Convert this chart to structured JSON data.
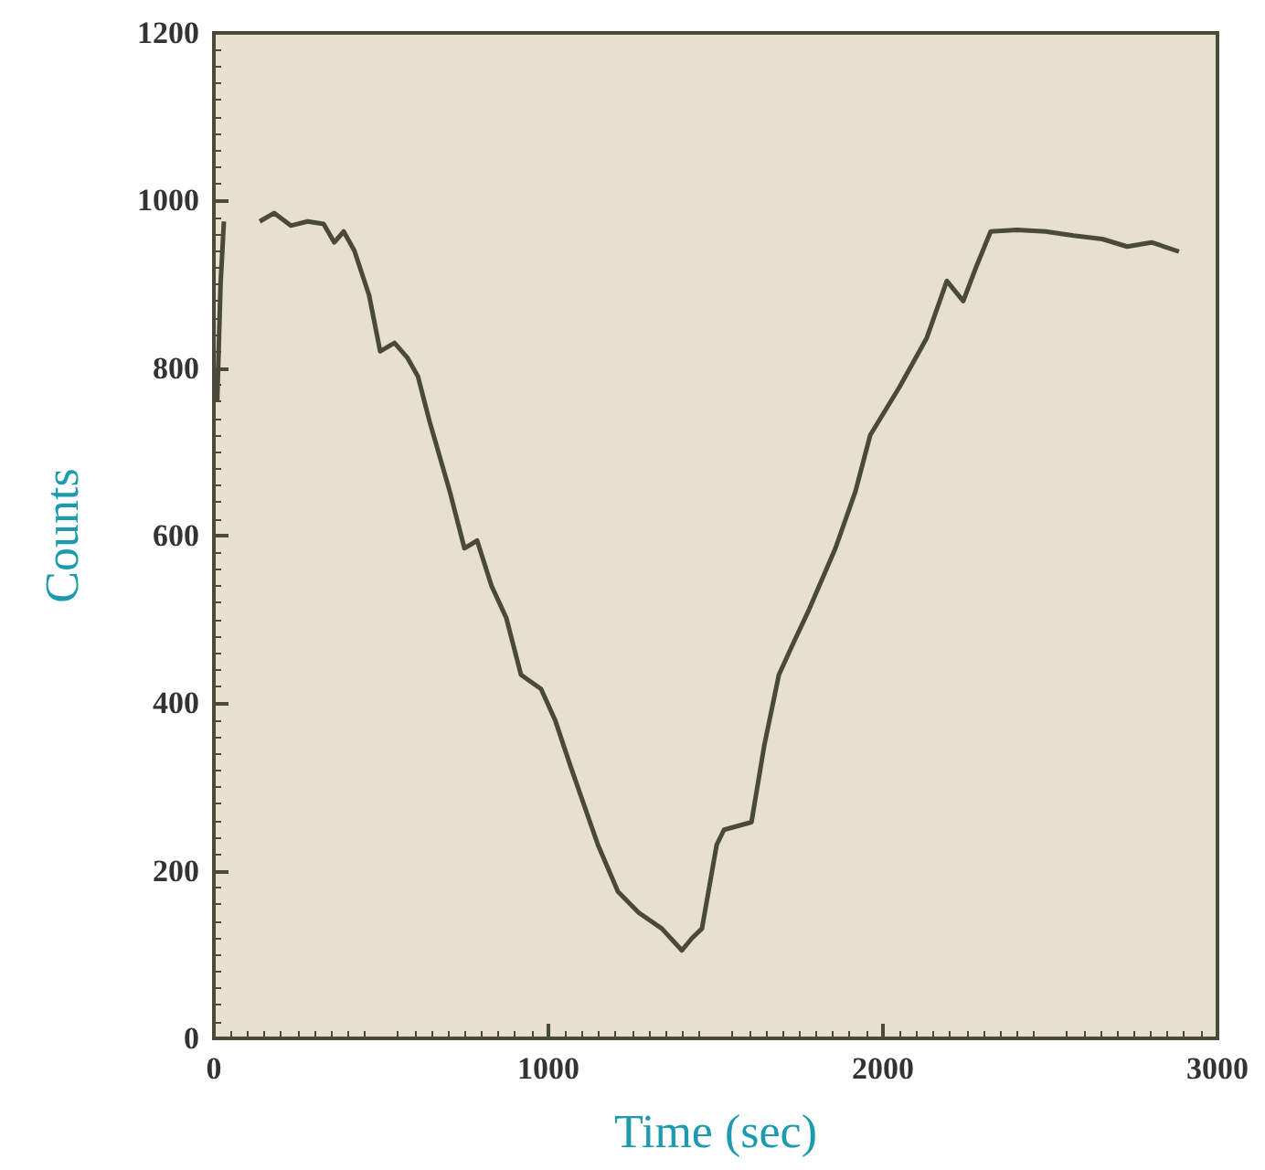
{
  "chart_data": {
    "type": "line",
    "xlabel": "Time (sec)",
    "ylabel": "Counts",
    "x": [
      10,
      20,
      30,
      60,
      137,
      180,
      230,
      280,
      328,
      360,
      388,
      420,
      464,
      497,
      540,
      579,
      610,
      645,
      705,
      749,
      787,
      830,
      874,
      918,
      978,
      1020,
      1066,
      1148,
      1208,
      1270,
      1339,
      1399,
      1430,
      1459,
      1503,
      1525,
      1607,
      1645,
      1689,
      1730,
      1776,
      1858,
      1918,
      1962,
      2049,
      2131,
      2191,
      2240,
      2279,
      2322,
      2400,
      2486,
      2570,
      2656,
      2730,
      2803,
      2885
    ],
    "series": [
      {
        "color": "#4a4a38",
        "values": [
          760,
          900,
          975,
          null,
          975,
          985,
          970,
          975,
          972,
          950,
          963,
          940,
          887,
          820,
          830,
          812,
          790,
          736,
          653,
          585,
          594,
          540,
          502,
          434,
          417,
          380,
          325,
          231,
          175,
          150,
          131,
          105,
          120,
          131,
          231,
          249,
          258,
          349,
          434,
          470,
          509,
          585,
          653,
          720,
          777,
          836,
          904,
          880,
          921,
          963,
          965,
          963,
          958,
          954,
          945,
          950,
          939
        ]
      }
    ],
    "xlim": [
      0,
      3000
    ],
    "xticks": [
      0,
      1000,
      2000,
      3000
    ],
    "ylim": [
      0,
      1200
    ],
    "yticks": [
      0,
      200,
      400,
      600,
      800,
      1000,
      1200
    ],
    "grid": false,
    "marker": "none",
    "line_style": "solid"
  }
}
